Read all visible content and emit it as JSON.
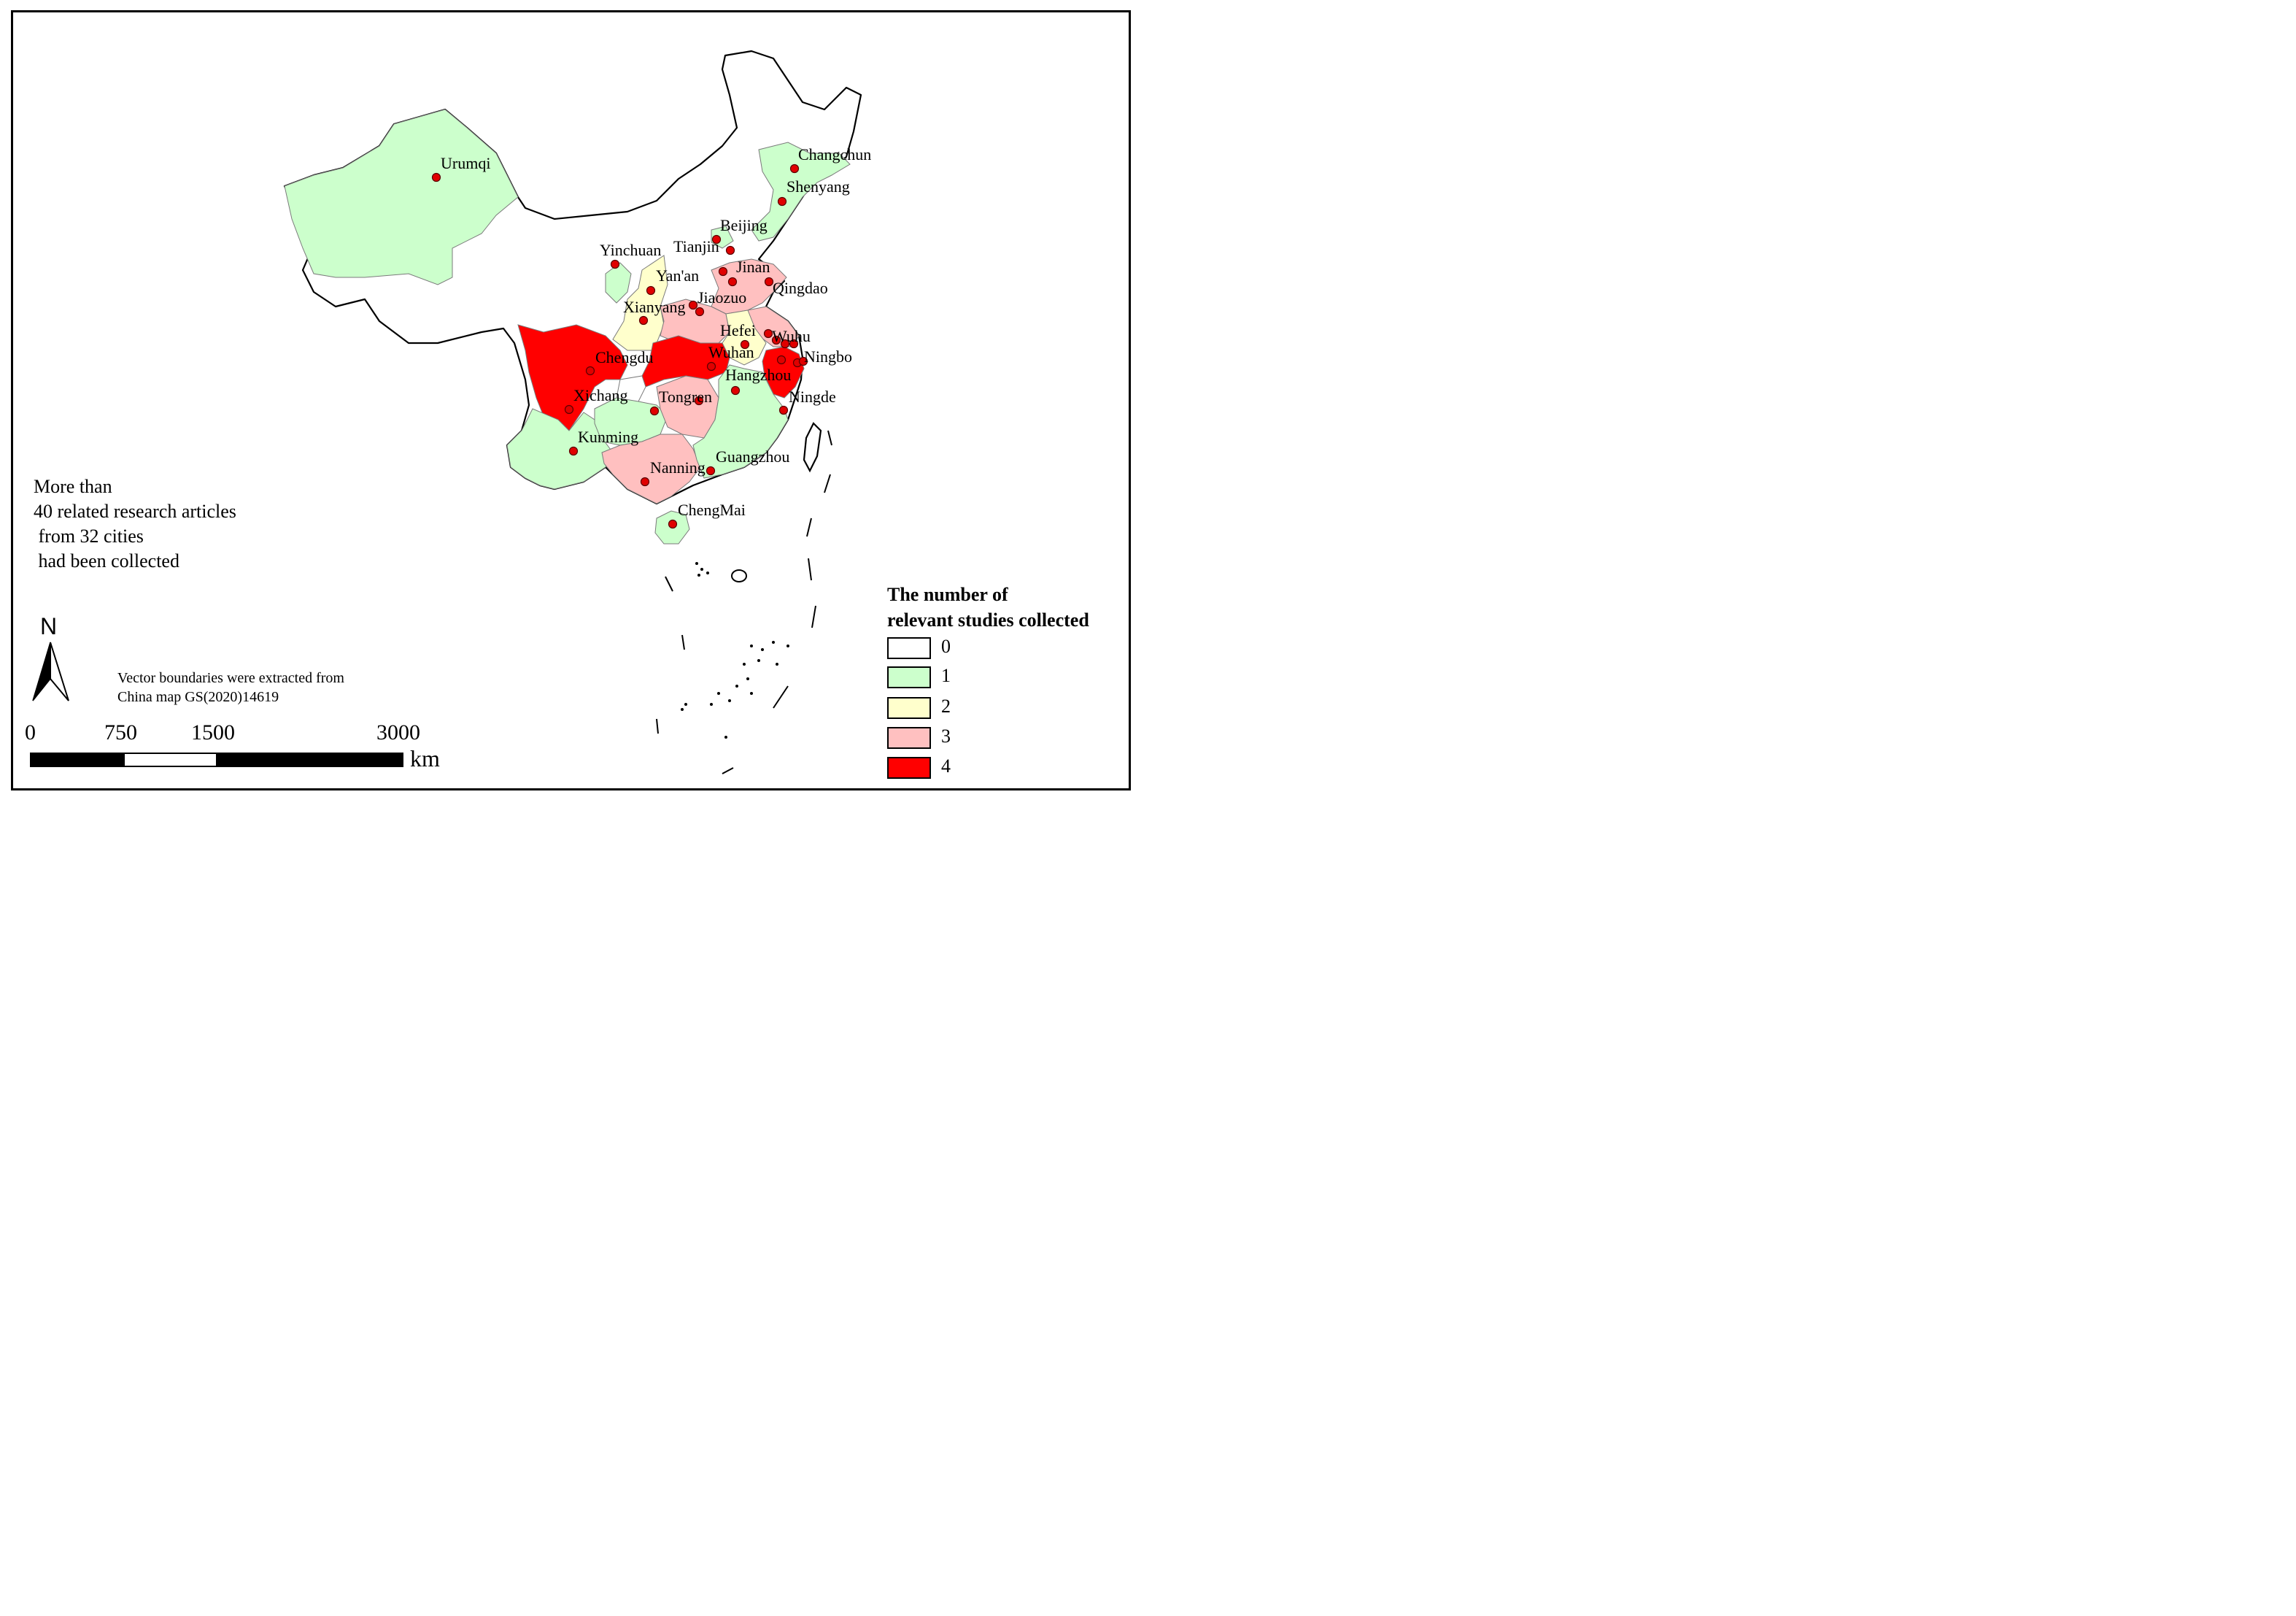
{
  "summary_text": [
    "More than",
    "40 related research articles",
    " from 32 cities",
    " had been collected"
  ],
  "source_note": [
    "Vector boundaries were extracted from",
    "China map GS(2020)14619"
  ],
  "north_arrow": {
    "letter": "N",
    "icon": "north-arrow-icon"
  },
  "scale_bar": {
    "ticks": [
      "0",
      "750",
      "1500",
      "3000"
    ],
    "unit": "km"
  },
  "legend": {
    "title": [
      "The number of",
      "relevant studies collected"
    ],
    "items": [
      {
        "label": "0",
        "color": "#ffffff"
      },
      {
        "label": "1",
        "color": "#ccffcc"
      },
      {
        "label": "2",
        "color": "#ffffcc"
      },
      {
        "label": "3",
        "color": "#ffc0c0"
      },
      {
        "label": "4",
        "color": "#ff0000"
      }
    ]
  },
  "cities": [
    "Urumqi",
    "Changchun",
    "Shenyang",
    "Beijing",
    "Tianjin",
    "Yinchuan",
    "Yan'an",
    "Jinan",
    "Qingdao",
    "Jiaozuo",
    "Xianyang",
    "Hefei",
    "Wuhu",
    "Chengdu",
    "Wuhan",
    "Ningbo",
    "Hangzhou",
    "Xichang",
    "Tongren",
    "Ningde",
    "Kunming",
    "Guangzhou",
    "Nanning",
    "ChengMai"
  ]
}
